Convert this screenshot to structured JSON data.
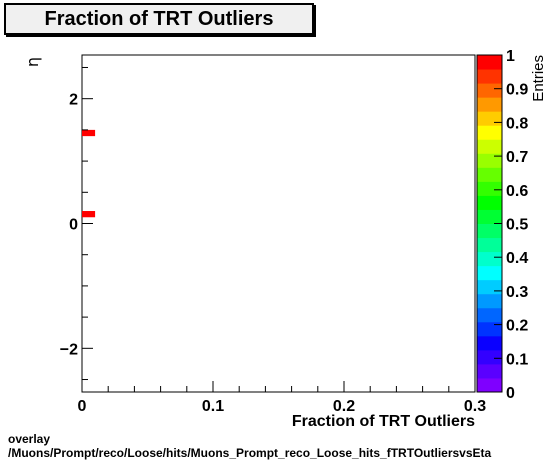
{
  "chart_data": {
    "type": "heatmap",
    "title": "Fraction of TRT Outliers",
    "xlabel": "Fraction of TRT Outliers",
    "ylabel": "η",
    "zlabel": "Entries",
    "xlim": [
      0,
      0.3
    ],
    "ylim": [
      -2.7,
      2.7
    ],
    "zlim": [
      0,
      1
    ],
    "x_ticks": [
      "0",
      "0.1",
      "0.2",
      "0.3"
    ],
    "y_ticks": [
      "−2",
      "0",
      "2"
    ],
    "z_ticks": [
      "0",
      "0.1",
      "0.2",
      "0.3",
      "0.4",
      "0.5",
      "0.6",
      "0.7",
      "0.8",
      "0.9",
      "1"
    ],
    "cells": [
      {
        "x0": 0.0,
        "x1": 0.01,
        "y0": 1.4,
        "y1": 1.5,
        "value": 1
      },
      {
        "x0": 0.0,
        "x1": 0.01,
        "y0": 0.1,
        "y1": 0.2,
        "value": 1
      }
    ],
    "palette": [
      "#7f00ff",
      "#5a00ff",
      "#3300ff",
      "#0a00ff",
      "#0033ff",
      "#0066ff",
      "#0099ff",
      "#00ccff",
      "#00ffff",
      "#00ffcc",
      "#00ff99",
      "#00ff66",
      "#00ff33",
      "#00ff00",
      "#33ff00",
      "#66ff00",
      "#99ff00",
      "#ccff00",
      "#ffff00",
      "#ffcc00",
      "#ff9900",
      "#ff6600",
      "#ff3300",
      "#ff0000"
    ]
  },
  "footer": {
    "line1": "overlay",
    "line2": "/Muons/Prompt/reco/Loose/hits/Muons_Prompt_reco_Loose_hits_fTRTOutliersvsEta"
  }
}
